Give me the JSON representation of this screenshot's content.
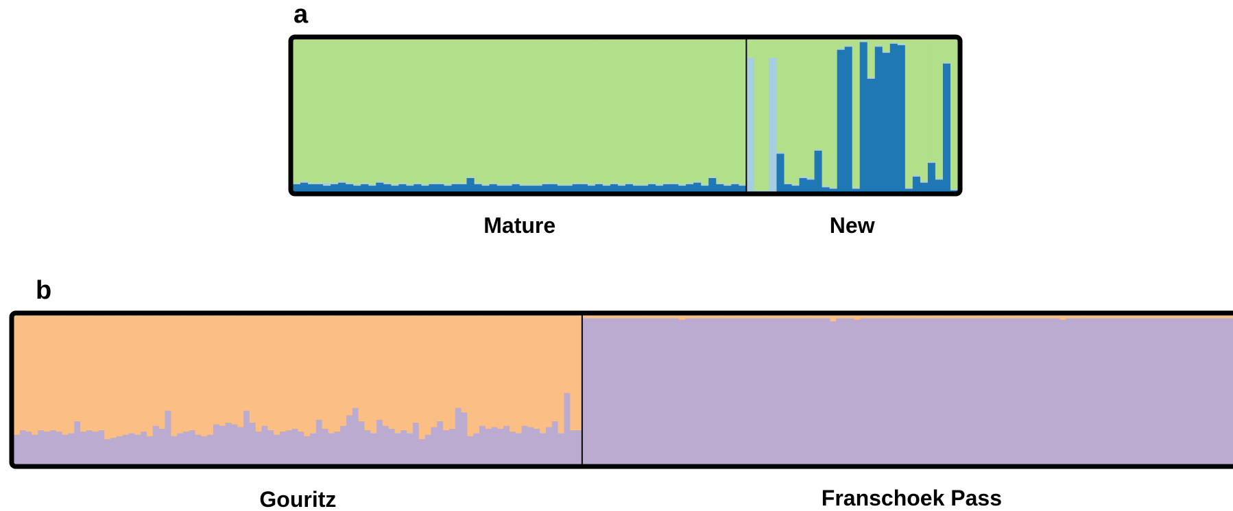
{
  "chart_data": [
    {
      "type": "bar",
      "stacked": true,
      "panel_label": "a",
      "ylim": [
        0,
        1
      ],
      "groups": [
        {
          "label": "Mature",
          "n": 60
        },
        {
          "label": "New",
          "n": 28
        }
      ],
      "colors": {
        "c1": "#b2df8a",
        "c2": "#1f78b4",
        "c3": "#a6cee3"
      },
      "series": [
        {
          "key": "c2",
          "values": [
            0.05,
            0.06,
            0.05,
            0.05,
            0.04,
            0.05,
            0.06,
            0.05,
            0.04,
            0.05,
            0.04,
            0.06,
            0.05,
            0.04,
            0.05,
            0.04,
            0.05,
            0.04,
            0.05,
            0.05,
            0.04,
            0.05,
            0.05,
            0.09,
            0.05,
            0.04,
            0.05,
            0.04,
            0.04,
            0.05,
            0.04,
            0.04,
            0.04,
            0.05,
            0.05,
            0.04,
            0.04,
            0.05,
            0.05,
            0.04,
            0.05,
            0.04,
            0.05,
            0.04,
            0.05,
            0.04,
            0.04,
            0.05,
            0.04,
            0.05,
            0.05,
            0.04,
            0.05,
            0.06,
            0.04,
            0.09,
            0.05,
            0.04,
            0.05,
            0.04,
            0.0,
            0.0,
            0.0,
            0.0,
            0.25,
            0.05,
            0.04,
            0.09,
            0.08,
            0.27,
            0.03,
            0.02,
            0.93,
            0.95,
            0.02,
            0.98,
            0.74,
            0.95,
            0.91,
            0.97,
            0.96,
            0.02,
            0.1,
            0.06,
            0.19,
            0.08,
            0.84,
            0.01
          ]
        },
        {
          "key": "c3",
          "values": [
            0.01,
            0.01,
            0.01,
            0.01,
            0.02,
            0.01,
            0.01,
            0.01,
            0.01,
            0.01,
            0.01,
            0.01,
            0.01,
            0.01,
            0.01,
            0.01,
            0.01,
            0.01,
            0.01,
            0.01,
            0.01,
            0.01,
            0.01,
            0.01,
            0.01,
            0.01,
            0.01,
            0.01,
            0.01,
            0.01,
            0.01,
            0.01,
            0.01,
            0.01,
            0.01,
            0.01,
            0.01,
            0.01,
            0.01,
            0.01,
            0.01,
            0.01,
            0.01,
            0.01,
            0.01,
            0.01,
            0.01,
            0.01,
            0.01,
            0.01,
            0.01,
            0.01,
            0.01,
            0.01,
            0.01,
            0.01,
            0.01,
            0.01,
            0.01,
            0.01,
            0.88,
            0.01,
            0.01,
            0.88,
            0.01,
            0.01,
            0.01,
            0.01,
            0.01,
            0.01,
            0.01,
            0.01,
            0.01,
            0.01,
            0.01,
            0.01,
            0.01,
            0.01,
            0.01,
            0.01,
            0.01,
            0.01,
            0.01,
            0.01,
            0.01,
            0.01,
            0.01,
            0.01
          ]
        },
        {
          "key": "c1",
          "values": "remainder"
        }
      ]
    },
    {
      "type": "bar",
      "stacked": true,
      "panel_label": "b",
      "ylim": [
        0,
        1
      ],
      "groups": [
        {
          "label": "Gouritz",
          "n": 94
        },
        {
          "label": "Franschoek Pass",
          "n": 109
        }
      ],
      "colors": {
        "purple": "#bcabd1",
        "orange": "#fbbf85"
      },
      "series": [
        {
          "key": "purple",
          "values": [
            0.2,
            0.23,
            0.22,
            0.2,
            0.23,
            0.22,
            0.23,
            0.22,
            0.2,
            0.21,
            0.29,
            0.22,
            0.23,
            0.22,
            0.23,
            0.17,
            0.18,
            0.19,
            0.2,
            0.21,
            0.2,
            0.22,
            0.19,
            0.26,
            0.24,
            0.36,
            0.19,
            0.21,
            0.22,
            0.23,
            0.2,
            0.19,
            0.2,
            0.27,
            0.26,
            0.28,
            0.27,
            0.25,
            0.36,
            0.28,
            0.22,
            0.26,
            0.23,
            0.2,
            0.22,
            0.23,
            0.24,
            0.22,
            0.19,
            0.21,
            0.3,
            0.24,
            0.21,
            0.22,
            0.26,
            0.33,
            0.38,
            0.29,
            0.23,
            0.21,
            0.3,
            0.26,
            0.24,
            0.21,
            0.23,
            0.21,
            0.28,
            0.17,
            0.2,
            0.25,
            0.29,
            0.23,
            0.24,
            0.38,
            0.35,
            0.19,
            0.21,
            0.26,
            0.24,
            0.25,
            0.24,
            0.26,
            0.22,
            0.21,
            0.26,
            0.25,
            0.24,
            0.21,
            0.25,
            0.29,
            0.21,
            0.48,
            0.23,
            0.23,
            0.98,
            0.98,
            0.98,
            0.98,
            0.98,
            0.98,
            0.98,
            0.98,
            0.98,
            0.98,
            0.98,
            0.98,
            0.98,
            0.98,
            0.98,
            0.98,
            0.97,
            0.98,
            0.98,
            0.98,
            0.98,
            0.98,
            0.98,
            0.98,
            0.98,
            0.98,
            0.98,
            0.98,
            0.98,
            0.98,
            0.98,
            0.98,
            0.98,
            0.98,
            0.98,
            0.98,
            0.98,
            0.98,
            0.98,
            0.98,
            0.98,
            0.96,
            0.98,
            0.98,
            0.98,
            0.97,
            0.98,
            0.98,
            0.98,
            0.98,
            0.98,
            0.98,
            0.98,
            0.98,
            0.98,
            0.98,
            0.98,
            0.98,
            0.98,
            0.98,
            0.98,
            0.98,
            0.98,
            0.98,
            0.98,
            0.98,
            0.98,
            0.98,
            0.98,
            0.98,
            0.98,
            0.98,
            0.98,
            0.98,
            0.98,
            0.98,
            0.98,
            0.98,
            0.98,
            0.97,
            0.98,
            0.98,
            0.98,
            0.98,
            0.98,
            0.98,
            0.98,
            0.98,
            0.98,
            0.98,
            0.98,
            0.98,
            0.98,
            0.98,
            0.98,
            0.98,
            0.98,
            0.98,
            0.98,
            0.98,
            0.98,
            0.98,
            0.98,
            0.98,
            0.98,
            0.98,
            0.98,
            0.98,
            0.98
          ]
        },
        {
          "key": "orange",
          "values": "remainder"
        }
      ]
    }
  ]
}
